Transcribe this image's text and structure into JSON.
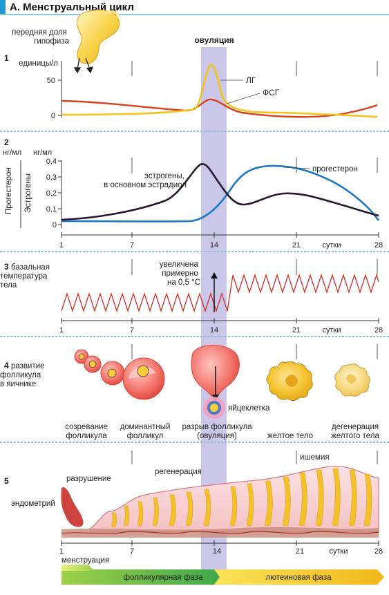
{
  "title": "А. Менструальный цикл",
  "ovulation_label": "овуляция",
  "days_label": "сутки",
  "day_ticks": [
    "1",
    "7",
    "14",
    "21",
    "28"
  ],
  "panel1": {
    "number": "1",
    "pituitary_label": "передняя доля гипофиза",
    "unit": "единицы/л",
    "yticks": [
      "50",
      "0"
    ],
    "lh_label": "ЛГ",
    "fsh_label": "ФСГ",
    "colors": {
      "lh": "#f4c419",
      "fsh": "#d9401c"
    }
  },
  "panel2": {
    "number": "2",
    "unit_left": "нг/мл",
    "unit_right": "нг/мл",
    "axis_progesterone": "Прогестерон",
    "axis_estrogen": "Эстрогены",
    "yticks": [
      "0,4",
      "0,3",
      "0,2",
      "0,1",
      "0"
    ],
    "estrogen_label": "эстрогены, в основном эстрадиол",
    "progesterone_label": "прогестерон",
    "colors": {
      "estrogen": "#2a1730",
      "progesterone": "#1a78c9"
    }
  },
  "panel3": {
    "number": "3",
    "label": "базальная температура тела",
    "note": "увеличена примерно на 0,5 °С",
    "color": "#cf2f24"
  },
  "panel4": {
    "number": "4",
    "label": "развитие фолликула в яичнике",
    "egg_label": "яйцеклетка",
    "stages": [
      "созревание фолликула",
      "доминантный фолликул",
      "разрыв фолликула (овуляция)",
      "желтое тело",
      "дегенерация желтого тела"
    ]
  },
  "panel5": {
    "number": "5",
    "label": "эндометрий",
    "destruction": "разрушение",
    "regeneration": "регенерация",
    "ischemia": "ишемия",
    "menstruation": "менструация"
  },
  "phases": {
    "follicular": "фолликулярная фаза",
    "luteal": "лютеиновая фаза",
    "colors": {
      "menstrual": "#c8e04a",
      "follicular": "#5cb85c",
      "luteal": "#f5c518"
    }
  }
}
